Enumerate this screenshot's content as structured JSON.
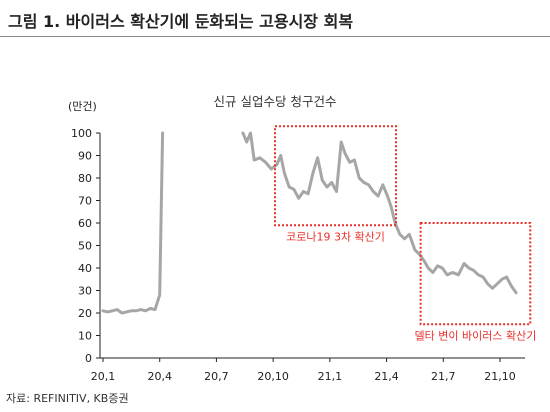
{
  "page": {
    "title": "그림 1. 바이러스 확산기에 둔화되는 고용시장 회복",
    "source": "자료: REFINITIV, KB증권"
  },
  "colors": {
    "line": "#a6a6a6",
    "box": "#e8302b",
    "axis": "#222222"
  },
  "chart_data": {
    "type": "line",
    "title": "신규 실업수당 청구건수",
    "ylabel": "(만건)",
    "xlabel": "",
    "x_unit": "month index from Jan 2020",
    "ylim": [
      0,
      100
    ],
    "xlim": [
      0,
      22
    ],
    "yticks": [
      0,
      10,
      20,
      30,
      40,
      50,
      60,
      70,
      80,
      90,
      100
    ],
    "xticks": [
      {
        "label": "20,1",
        "value": 0
      },
      {
        "label": "20,4",
        "value": 3
      },
      {
        "label": "20,7",
        "value": 6
      },
      {
        "label": "20,10",
        "value": 9
      },
      {
        "label": "21,1",
        "value": 12
      },
      {
        "label": "21,4",
        "value": 15
      },
      {
        "label": "21,7",
        "value": 18
      },
      {
        "label": "21,10",
        "value": 21
      }
    ],
    "grid": false,
    "series": [
      {
        "name": "신규 실업수당 청구건수",
        "segments": [
          [
            [
              0.0,
              21
            ],
            [
              0.25,
              20.5
            ],
            [
              0.5,
              21
            ],
            [
              0.75,
              21.5
            ],
            [
              1.0,
              20
            ],
            [
              1.25,
              20.5
            ],
            [
              1.5,
              21
            ],
            [
              1.75,
              21
            ],
            [
              2.0,
              21.5
            ],
            [
              2.25,
              21
            ],
            [
              2.5,
              22
            ],
            [
              2.75,
              21.5
            ],
            [
              3.0,
              28
            ],
            [
              3.15,
              100
            ]
          ],
          [
            [
              7.4,
              100
            ],
            [
              7.6,
              96
            ],
            [
              7.8,
              100
            ],
            [
              8.0,
              88
            ],
            [
              8.3,
              89
            ],
            [
              8.6,
              87
            ],
            [
              8.9,
              84
            ],
            [
              9.2,
              86
            ],
            [
              9.4,
              90
            ],
            [
              9.6,
              82
            ],
            [
              9.85,
              76
            ],
            [
              10.1,
              75
            ],
            [
              10.35,
              71
            ],
            [
              10.6,
              74
            ],
            [
              10.85,
              73
            ],
            [
              11.1,
              82
            ],
            [
              11.35,
              89
            ],
            [
              11.6,
              79
            ],
            [
              11.85,
              76
            ],
            [
              12.1,
              78
            ],
            [
              12.35,
              74
            ],
            [
              12.6,
              96
            ],
            [
              12.8,
              91
            ],
            [
              13.05,
              87
            ],
            [
              13.3,
              88
            ],
            [
              13.55,
              80
            ],
            [
              13.8,
              78
            ],
            [
              14.05,
              77
            ],
            [
              14.3,
              74
            ],
            [
              14.55,
              72
            ],
            [
              14.8,
              77
            ],
            [
              15.05,
              72
            ],
            [
              15.25,
              67
            ],
            [
              15.45,
              60
            ],
            [
              15.7,
              55
            ],
            [
              15.95,
              53
            ],
            [
              16.2,
              55
            ],
            [
              16.5,
              48
            ],
            [
              16.75,
              46
            ],
            [
              17.0,
              43
            ],
            [
              17.2,
              40
            ],
            [
              17.45,
              38
            ],
            [
              17.7,
              41
            ],
            [
              17.95,
              40
            ],
            [
              18.2,
              37
            ],
            [
              18.5,
              38
            ],
            [
              18.8,
              37
            ],
            [
              19.1,
              42
            ],
            [
              19.35,
              40
            ],
            [
              19.6,
              39
            ],
            [
              19.85,
              37
            ],
            [
              20.1,
              36
            ],
            [
              20.35,
              33
            ],
            [
              20.6,
              31
            ],
            [
              20.85,
              33
            ],
            [
              21.1,
              35
            ],
            [
              21.35,
              36
            ],
            [
              21.6,
              32
            ],
            [
              21.85,
              29
            ]
          ]
        ]
      }
    ],
    "annotations": [
      {
        "text": "코로나19 3차 확산기",
        "x_range": [
          9.1,
          15.5
        ],
        "y_range": [
          59,
          103
        ]
      },
      {
        "text": "델타 변이 바이러스 확산기",
        "x_range": [
          16.8,
          22.6
        ],
        "y_range": [
          15,
          60
        ]
      }
    ]
  }
}
